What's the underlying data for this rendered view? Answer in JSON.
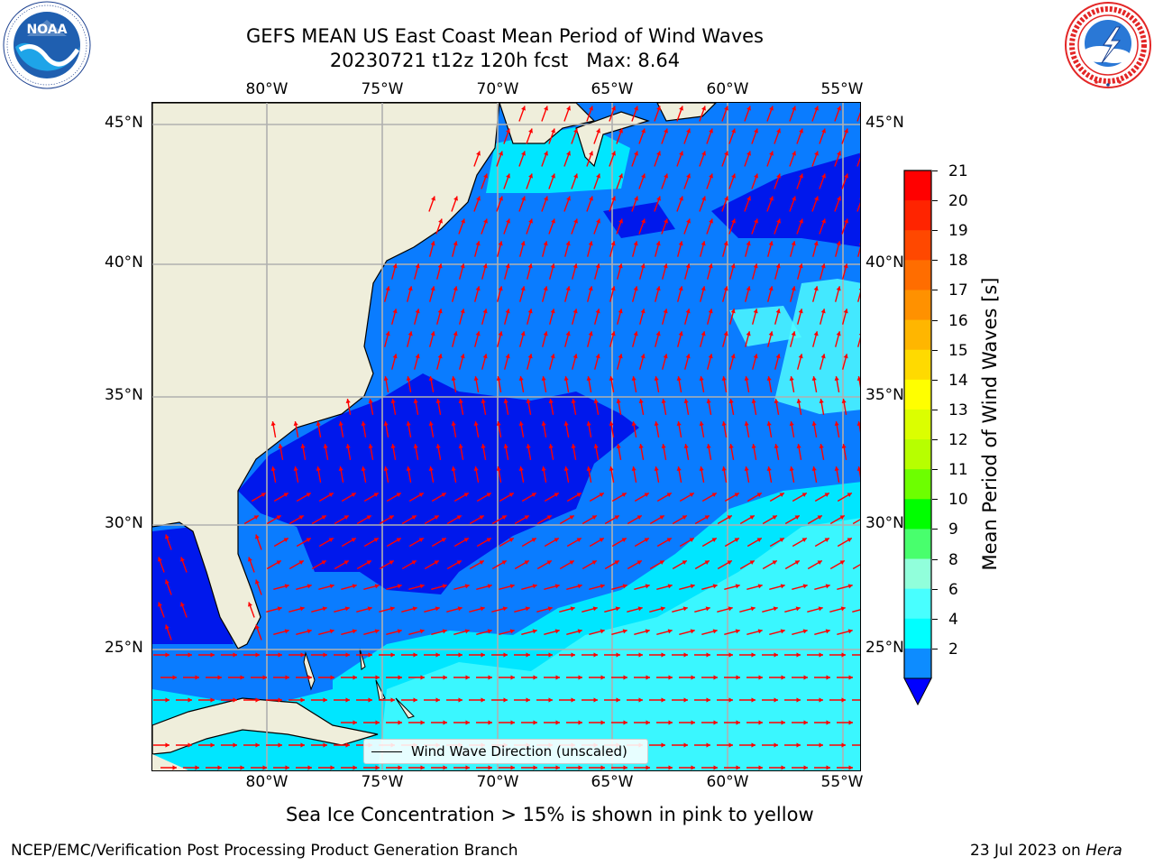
{
  "header": {
    "title_line1": "GEFS MEAN US East Coast Mean Period of Wind Waves",
    "title_line2": "20230721 t12z 120h fcst   Max: 8.64"
  },
  "logos": {
    "left": {
      "name": "NOAA",
      "text": "NOAA",
      "ring_text": "NATIONAL OCEANIC AND ATMOSPHERIC ADMINISTRATION · U.S. DEPARTMENT OF COMMERCE"
    },
    "right": {
      "name": "National Weather Service",
      "ring_text": "NATIONAL WEATHER SERVICE"
    }
  },
  "map": {
    "lon_labels": [
      "80°W",
      "75°W",
      "70°W",
      "65°W",
      "60°W",
      "55°W"
    ],
    "lat_labels": [
      "45°N",
      "40°N",
      "35°N",
      "30°N",
      "25°N"
    ],
    "extent": {
      "lon": [
        -85,
        -54.2
      ],
      "lat": [
        20.5,
        45.8
      ]
    },
    "colors": {
      "land": "#efeedb",
      "ocean_dark": "#0018ec",
      "ocean_mid": "#0a7cff",
      "ocean_cyan": "#00e6ff",
      "ocean_light": "#4dfcff",
      "arrows": "#ff0000",
      "grid": "#b0b0b0"
    },
    "legend_text": "Wind Wave Direction (unscaled)"
  },
  "colorbar": {
    "label": "Mean Period of Wind Waves [s]",
    "ticks": [
      "21",
      "20",
      "19",
      "18",
      "17",
      "16",
      "15",
      "14",
      "13",
      "12",
      "11",
      "10",
      "9",
      "8",
      "6",
      "4",
      "2"
    ],
    "colors": [
      "#ff0000",
      "#ff2400",
      "#ff4800",
      "#ff6d00",
      "#ff9100",
      "#ffb600",
      "#ffda00",
      "#ffff00",
      "#dbff00",
      "#b7ff00",
      "#6dff00",
      "#00ff00",
      "#48ff6d",
      "#91ffdb",
      "#48ffff",
      "#00ffff",
      "#0d8cff"
    ],
    "underflow_color": "#0000ff"
  },
  "subtitle": "Sea Ice Concentration > 15% is shown in pink to yellow",
  "footer": {
    "left": "NCEP/EMC/Verification Post Processing Product Generation Branch",
    "right_prefix": "23 Jul 2023 on ",
    "right_italic": "Hera"
  }
}
